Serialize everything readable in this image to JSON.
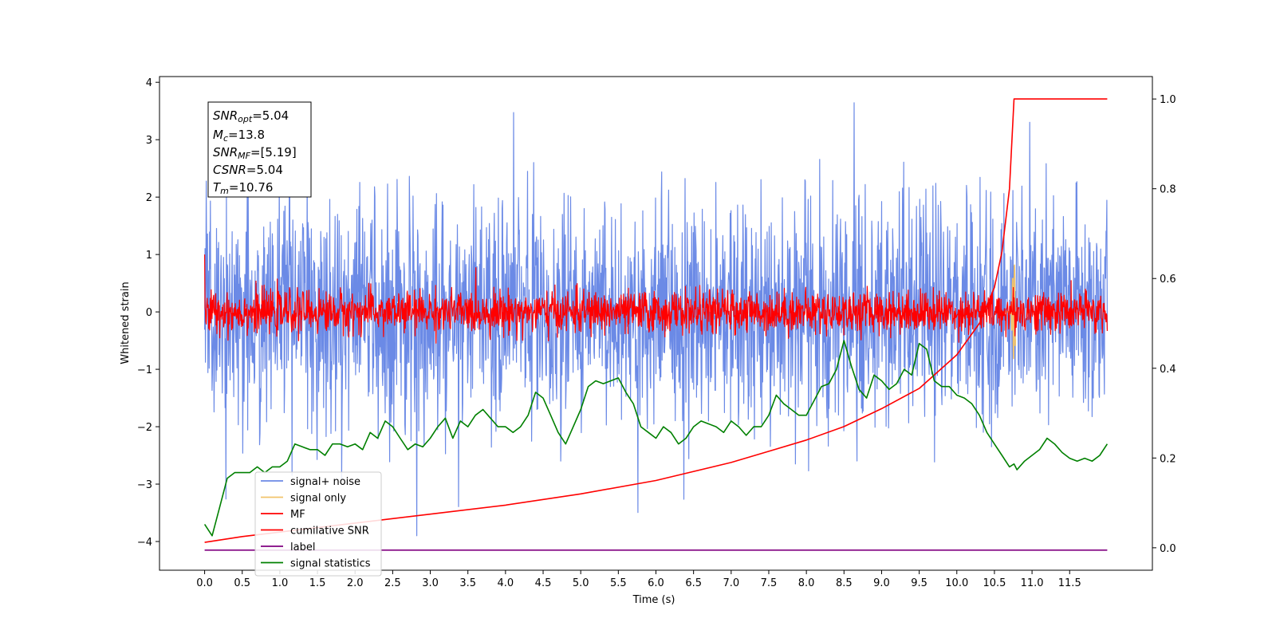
{
  "chart_data": {
    "type": "line",
    "xlabel": "Time (s)",
    "ylabel": "Whitened strain",
    "xlim": [
      -0.6,
      12.6
    ],
    "ylim": [
      -4.5,
      4.1
    ],
    "y2lim": [
      -0.05,
      1.05
    ],
    "x_ticks": [
      "0.0",
      "0.5",
      "1.0",
      "1.5",
      "2.0",
      "2.5",
      "3.0",
      "3.5",
      "4.0",
      "4.5",
      "5.0",
      "5.5",
      "6.0",
      "6.5",
      "7.0",
      "7.5",
      "8.0",
      "8.5",
      "9.0",
      "9.5",
      "10.0",
      "10.5",
      "11.0",
      "11.5"
    ],
    "y_ticks": [
      "4",
      "3",
      "2",
      "1",
      "0",
      "−1",
      "−2",
      "−3",
      "−4"
    ],
    "y2_ticks": [
      "1.0",
      "0.8",
      "0.6",
      "0.4",
      "0.2",
      "0.0"
    ],
    "legend_position": "lower-left",
    "grid": false,
    "colors": {
      "signal_noise": "#6b8ae6",
      "signal_only": "#f2c46b",
      "mf": "#ff0000",
      "cumulative": "#ff0000",
      "label": "#800080",
      "stats": "#008000"
    },
    "info_box": {
      "snr_opt": "=5.04",
      "mc": "=13.8",
      "snr_mf": "=[5.19]",
      "csnr": "=5.04",
      "tm": "=10.76"
    },
    "series": [
      {
        "name": "signal+ noise",
        "axis": "left",
        "style": "noise",
        "sigma": 1.0,
        "x_range": [
          0,
          12
        ]
      },
      {
        "name": "signal only",
        "axis": "left",
        "style": "burst",
        "center": 10.76,
        "amplitude": 0.85
      },
      {
        "name": "MF",
        "axis": "left",
        "style": "noise",
        "sigma": 0.18,
        "x_range": [
          0,
          12
        ]
      },
      {
        "name": "cumilative SNR",
        "axis": "right",
        "x": [
          0,
          0.5,
          1.0,
          2.0,
          3.0,
          4.0,
          5.0,
          6.0,
          7.0,
          7.5,
          8.0,
          8.5,
          9.0,
          9.5,
          10.0,
          10.3,
          10.5,
          10.6,
          10.7,
          10.76,
          11.0,
          11.5,
          12.0
        ],
        "y": [
          0.012,
          0.025,
          0.035,
          0.055,
          0.075,
          0.095,
          0.12,
          0.15,
          0.19,
          0.215,
          0.24,
          0.27,
          0.31,
          0.355,
          0.43,
          0.5,
          0.58,
          0.66,
          0.8,
          1.0,
          1.0,
          1.0,
          1.0
        ]
      },
      {
        "name": "label",
        "axis": "left",
        "x": [
          0,
          12
        ],
        "y": [
          -4.15,
          -4.15
        ]
      },
      {
        "name": "signal statistics",
        "axis": "left",
        "x": [
          0.0,
          0.1,
          0.2,
          0.3,
          0.4,
          0.5,
          0.6,
          0.7,
          0.8,
          0.9,
          1.0,
          1.1,
          1.2,
          1.3,
          1.4,
          1.5,
          1.6,
          1.7,
          1.8,
          1.9,
          2.0,
          2.1,
          2.2,
          2.3,
          2.4,
          2.5,
          2.6,
          2.7,
          2.8,
          2.9,
          3.0,
          3.1,
          3.2,
          3.3,
          3.4,
          3.5,
          3.6,
          3.7,
          3.8,
          3.9,
          4.0,
          4.1,
          4.2,
          4.3,
          4.4,
          4.5,
          4.6,
          4.7,
          4.8,
          4.9,
          5.0,
          5.1,
          5.2,
          5.3,
          5.4,
          5.5,
          5.6,
          5.7,
          5.8,
          5.9,
          6.0,
          6.1,
          6.2,
          6.3,
          6.4,
          6.5,
          6.6,
          6.7,
          6.8,
          6.9,
          7.0,
          7.1,
          7.2,
          7.3,
          7.4,
          7.5,
          7.6,
          7.7,
          7.8,
          7.9,
          8.0,
          8.1,
          8.2,
          8.3,
          8.4,
          8.5,
          8.6,
          8.7,
          8.8,
          8.9,
          9.0,
          9.1,
          9.2,
          9.3,
          9.4,
          9.5,
          9.6,
          9.7,
          9.8,
          9.9,
          10.0,
          10.1,
          10.2,
          10.3,
          10.4,
          10.5,
          10.6,
          10.7,
          10.76,
          10.8,
          10.9,
          11.0,
          11.1,
          11.2,
          11.3,
          11.4,
          11.5,
          11.6,
          11.7,
          11.8,
          11.9,
          12.0
        ],
        "y": [
          -3.7,
          -3.9,
          -3.4,
          -2.9,
          -2.8,
          -2.8,
          -2.8,
          -2.7,
          -2.8,
          -2.7,
          -2.7,
          -2.6,
          -2.3,
          -2.35,
          -2.4,
          -2.4,
          -2.5,
          -2.3,
          -2.3,
          -2.35,
          -2.3,
          -2.4,
          -2.1,
          -2.2,
          -1.9,
          -2.0,
          -2.2,
          -2.4,
          -2.3,
          -2.35,
          -2.2,
          -2.0,
          -1.85,
          -2.2,
          -1.9,
          -2.0,
          -1.8,
          -1.7,
          -1.85,
          -2.0,
          -2.0,
          -2.1,
          -2.0,
          -1.8,
          -1.4,
          -1.5,
          -1.8,
          -2.1,
          -2.3,
          -2.0,
          -1.7,
          -1.3,
          -1.2,
          -1.25,
          -1.2,
          -1.15,
          -1.4,
          -1.6,
          -2.0,
          -2.1,
          -2.2,
          -2.0,
          -2.1,
          -2.3,
          -2.2,
          -2.0,
          -1.9,
          -1.95,
          -2.0,
          -2.1,
          -1.9,
          -2.0,
          -2.15,
          -2.0,
          -2.0,
          -1.8,
          -1.45,
          -1.6,
          -1.7,
          -1.8,
          -1.8,
          -1.55,
          -1.3,
          -1.25,
          -1.0,
          -0.5,
          -0.95,
          -1.35,
          -1.5,
          -1.1,
          -1.2,
          -1.35,
          -1.25,
          -1.0,
          -1.1,
          -0.55,
          -0.65,
          -1.2,
          -1.3,
          -1.3,
          -1.45,
          -1.5,
          -1.6,
          -1.8,
          -2.1,
          -2.3,
          -2.5,
          -2.7,
          -2.65,
          -2.75,
          -2.6,
          -2.5,
          -2.4,
          -2.2,
          -2.3,
          -2.45,
          -2.55,
          -2.6,
          -2.55,
          -2.6,
          -2.5,
          -2.3
        ]
      }
    ]
  }
}
